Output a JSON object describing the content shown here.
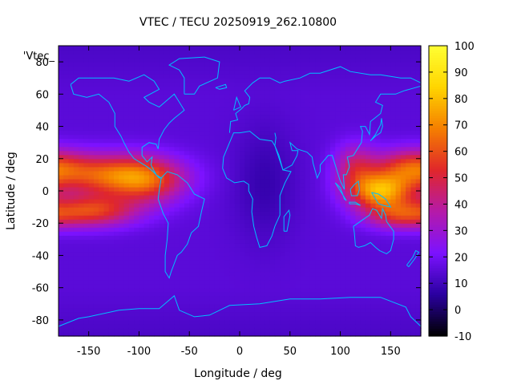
{
  "chart_data": {
    "type": "heatmap",
    "title": "VTEC / TECU 20250919_262.10800",
    "xlabel": "Longitude / deg",
    "ylabel": "Latitude / deg",
    "key_label": "'Vtec_",
    "xlim": [
      -180,
      180
    ],
    "ylim": [
      -90,
      90
    ],
    "x_ticks": [
      -150,
      -100,
      -50,
      0,
      50,
      100,
      150
    ],
    "y_ticks": [
      -80,
      -60,
      -40,
      -20,
      0,
      20,
      40,
      60,
      80
    ],
    "cb_ticks": [
      -10,
      0,
      10,
      20,
      30,
      40,
      50,
      60,
      70,
      80,
      90,
      100
    ],
    "zlim": [
      -10,
      100
    ],
    "palette": [
      "#000000",
      "#2a00a0",
      "#7c12ff",
      "#b51aa8",
      "#e0272b",
      "#f57f00",
      "#ffd500",
      "#ffff33"
    ],
    "coastline_color": "#00bfff",
    "grid": false,
    "description_of_values": "Vertical total electron content in TECU on a lon/lat grid",
    "features": [
      {
        "lon": -125,
        "lat": 10,
        "peak": 62,
        "slon": 40,
        "slat": 9
      },
      {
        "lon": -145,
        "lat": -12,
        "peak": 55,
        "slon": 30,
        "slat": 7
      },
      {
        "lon": -90,
        "lat": 5,
        "peak": 40,
        "slon": 25,
        "slat": 10
      },
      {
        "lon": 140,
        "lat": 0,
        "peak": 74,
        "slon": 22,
        "slat": 8
      },
      {
        "lon": 170,
        "lat": 15,
        "peak": 52,
        "slon": 25,
        "slat": 8
      },
      {
        "lon": 160,
        "lat": -15,
        "peak": 48,
        "slon": 25,
        "slat": 6
      },
      {
        "lon": 115,
        "lat": 15,
        "peak": 42,
        "slon": 15,
        "slat": 10
      }
    ],
    "background_value": 15,
    "low_region": {
      "lon": 25,
      "lat": 5,
      "value": 8,
      "slon": 22,
      "slat": 25
    }
  }
}
